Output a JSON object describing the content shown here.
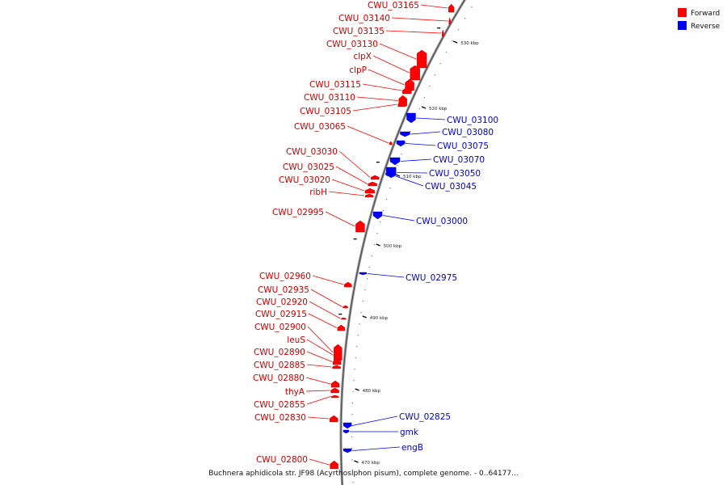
{
  "legend": {
    "forward_label": "Forward",
    "reverse_label": "Reverse",
    "forward_color": "#ff0000",
    "reverse_color": "#0000ff"
  },
  "caption": "Buchnera aphidicola str. JF98 (Acyrthosiphon pisum), complete genome. - 0..64177...",
  "ticks": [
    "530 kbp",
    "520 kbp",
    "510 kbp",
    "500 kbp",
    "490 kbp",
    "480 kbp",
    "470 kbp"
  ],
  "forward_genes": [
    "CWU_03165",
    "CWU_03140",
    "CWU_03135",
    "CWU_03130",
    "clpX",
    "clpP",
    "CWU_03115",
    "CWU_03110",
    "CWU_03105",
    "CWU_03065",
    "CWU_03030",
    "CWU_03025",
    "CWU_03020",
    "ribH",
    "CWU_02995",
    "CWU_02960",
    "CWU_02935",
    "CWU_02920",
    "CWU_02915",
    "CWU_02900",
    "leuS",
    "CWU_02890",
    "CWU_02885",
    "CWU_02880",
    "thyA",
    "CWU_02855",
    "CWU_02830",
    "CWU_02800"
  ],
  "reverse_genes": [
    "CWU_03100",
    "CWU_03080",
    "CWU_03075",
    "CWU_03070",
    "CWU_03050",
    "CWU_03045",
    "CWU_03000",
    "CWU_02975",
    "CWU_02825",
    "gmk",
    "engB"
  ]
}
